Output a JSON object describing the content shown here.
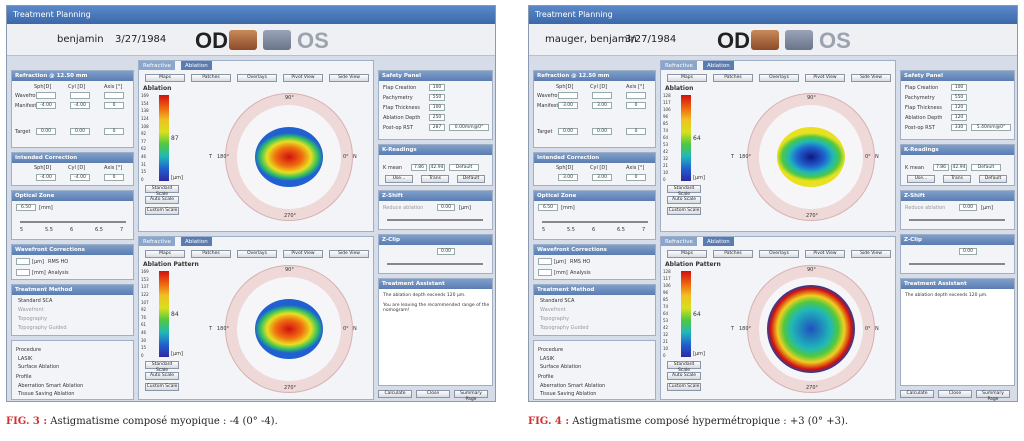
{
  "figures": [
    {
      "window_title": "Treatment Planning",
      "patient": "benjamin",
      "dob": "3/27/1984",
      "od": "OD",
      "os": "OS",
      "refraction_title": "Refraction @ 12.50 mm",
      "col_sph": "Sph[D]",
      "col_cyl": "Cyl [D]",
      "col_axis": "Axis [°]",
      "row_wavefront": "Wavefront",
      "row_manifest": "Manifest",
      "manifest_sph": "-4.00",
      "manifest_cyl": "-4.00",
      "manifest_axis": "0",
      "target_label": "Target",
      "target_sph": "0.00",
      "target_cyl": "0.00",
      "target_axis": "0",
      "intended_title": "Intended Correction",
      "intended_sph": "-4.00",
      "intended_cyl": "-4.00",
      "intended_axis": "0",
      "optical_title": "Optical Zone",
      "optical_value": "6.50",
      "optical_unit": "[mm]",
      "ticks": [
        "5",
        "5.5",
        "6",
        "6.5",
        "7"
      ],
      "wavefront_title": "Wavefront Corrections",
      "wf_rms": "RMS HO",
      "wf_analysis": "Analysis",
      "wf_um": "[µm]",
      "wf_mm": "[mm]",
      "method_title": "Treatment Method",
      "method_items": [
        "Standard SCA",
        "Wavefront",
        "Topography",
        "Topography Guided"
      ],
      "procedure_label": "Procedure",
      "proc_items": [
        "LASIK",
        "Surface Ablation"
      ],
      "profile_label": "Profile",
      "profile_items": [
        "Aberration Smart Ablation",
        "Tissue Saving Ablation"
      ],
      "tabs": [
        "Refractive",
        "Ablation"
      ],
      "toolbar": [
        "Maps",
        "Patches",
        "Overlays",
        "Pivot View",
        "Side View"
      ],
      "map1_title": "Ablation",
      "map1_ticks": [
        "169",
        "154",
        "138",
        "124",
        "108",
        "92",
        "77",
        "62",
        "46",
        "31",
        "15",
        "0"
      ],
      "map1_value": "87",
      "map2_title": "Ablation Pattern",
      "map2_ticks": [
        "169",
        "153",
        "137",
        "122",
        "107",
        "92",
        "76",
        "61",
        "46",
        "30",
        "15",
        "0"
      ],
      "map2_value": "84",
      "unit_um": "[µm]",
      "deg_top": "90°",
      "deg_bottom": "270°",
      "deg_left": "180°",
      "deg_right": "0°",
      "T": "T",
      "N": "N",
      "scale_buttons": [
        "Standard Scale",
        "Auto Scale",
        "Custom Scale"
      ],
      "safety_title": "Safety Panel",
      "safety_rows": [
        "Flap Creation",
        "Pachymetry",
        "Flap Thickness",
        "Ablation Depth",
        "Post-op RST"
      ],
      "safety_vals": [
        "100",
        "550",
        "100",
        "250",
        "287"
      ],
      "rst_extra": "0.00mm@0°",
      "k_title": "K-Readings",
      "k_mean": "K mean",
      "k_vals": [
        "7.86",
        "42.94"
      ],
      "k_default": "Default",
      "k_btns": [
        "Use...",
        "Trans",
        "Default"
      ],
      "zshift_title": "Z-Shift",
      "zshift_label": "Reduce ablation",
      "zshift_val": "0.00",
      "zshift_unit": "[µm]",
      "zclip_title": "Z-Clip",
      "zclip_val": "0.00",
      "assistant_title": "Treatment Assistant",
      "assistant_msgs": [
        "The ablation depth exceeds 120 µm.",
        "You are leaving the recommended range of the nomogram!"
      ],
      "bottom_btns": [
        "Calculate",
        "Close",
        "Summary Page"
      ],
      "caption_prefix": "FIG. 3 :",
      "caption_text": " Astigmatisme composé myopique : -4 (0° -4)."
    },
    {
      "window_title": "Treatment Planning",
      "patient": "mauger, benjamin",
      "dob": "3/27/1984",
      "od": "OD",
      "os": "OS",
      "refraction_title": "Refraction @ 12.50 mm",
      "col_sph": "Sph[D]",
      "col_cyl": "Cyl [D]",
      "col_axis": "Axis [°]",
      "row_wavefront": "Wavefront",
      "row_manifest": "Manifest",
      "manifest_sph": "3.00",
      "manifest_cyl": "3.00",
      "manifest_axis": "0",
      "target_label": "Target",
      "target_sph": "0.00",
      "target_cyl": "0.00",
      "target_axis": "0",
      "intended_title": "Intended Correction",
      "intended_sph": "3.00",
      "intended_cyl": "3.00",
      "intended_axis": "0",
      "optical_title": "Optical Zone",
      "optical_value": "6.50",
      "optical_unit": "[mm]",
      "ticks": [
        "5",
        "5.5",
        "6",
        "6.5",
        "7"
      ],
      "wavefront_title": "Wavefront Corrections",
      "wf_rms": "RMS HO",
      "wf_analysis": "Analysis",
      "wf_um": "[µm]",
      "wf_mm": "[mm]",
      "method_title": "Treatment Method",
      "method_items": [
        "Standard SCA",
        "Wavefront",
        "Topography",
        "Topography Guided"
      ],
      "procedure_label": "Procedure",
      "proc_items": [
        "LASIK",
        "Surface Ablation"
      ],
      "profile_label": "Profile",
      "profile_items": [
        "Aberration Smart Ablation",
        "Tissue Saving Ablation"
      ],
      "tabs": [
        "Refractive",
        "Ablation"
      ],
      "toolbar": [
        "Maps",
        "Patches",
        "Overlays",
        "Pivot View",
        "Side View"
      ],
      "map1_title": "Ablation",
      "map1_ticks": [
        "128",
        "117",
        "106",
        "96",
        "85",
        "74",
        "64",
        "53",
        "42",
        "32",
        "21",
        "10",
        "0"
      ],
      "map1_value": "64",
      "map2_title": "Ablation Pattern",
      "map2_ticks": [
        "128",
        "117",
        "106",
        "96",
        "85",
        "74",
        "64",
        "53",
        "42",
        "32",
        "21",
        "10",
        "0"
      ],
      "map2_value": "64",
      "unit_um": "[µm]",
      "deg_top": "90°",
      "deg_bottom": "270°",
      "deg_left": "180°",
      "deg_right": "0°",
      "T": "T",
      "N": "N",
      "scale_buttons": [
        "Standard Scale",
        "Auto Scale",
        "Custom Scale"
      ],
      "safety_title": "Safety Panel",
      "safety_rows": [
        "Flap Creation",
        "Pachymetry",
        "Flap Thickness",
        "Ablation Depth",
        "Post-op RST"
      ],
      "safety_vals": [
        "100",
        "550",
        "120",
        "120",
        "330"
      ],
      "rst_extra": "5.40mm@0°",
      "k_title": "K-Readings",
      "k_mean": "K mean",
      "k_vals": [
        "7.86",
        "42.94"
      ],
      "k_default": "Default",
      "k_btns": [
        "Use...",
        "Trans",
        "Default"
      ],
      "zshift_title": "Z-Shift",
      "zshift_label": "Reduce ablation",
      "zshift_val": "0.00",
      "zshift_unit": "[µm]",
      "zclip_title": "Z-Clip",
      "zclip_val": "0.00",
      "assistant_title": "Treatment Assistant",
      "assistant_msgs": [
        "The ablation depth exceeds 120 µm."
      ],
      "bottom_btns": [
        "Calculate",
        "Close",
        "Summary Page"
      ],
      "caption_prefix": "FIG. 4 :",
      "caption_text": " Astigmatisme composé hypermétropique : +3 (0° +3)."
    }
  ]
}
